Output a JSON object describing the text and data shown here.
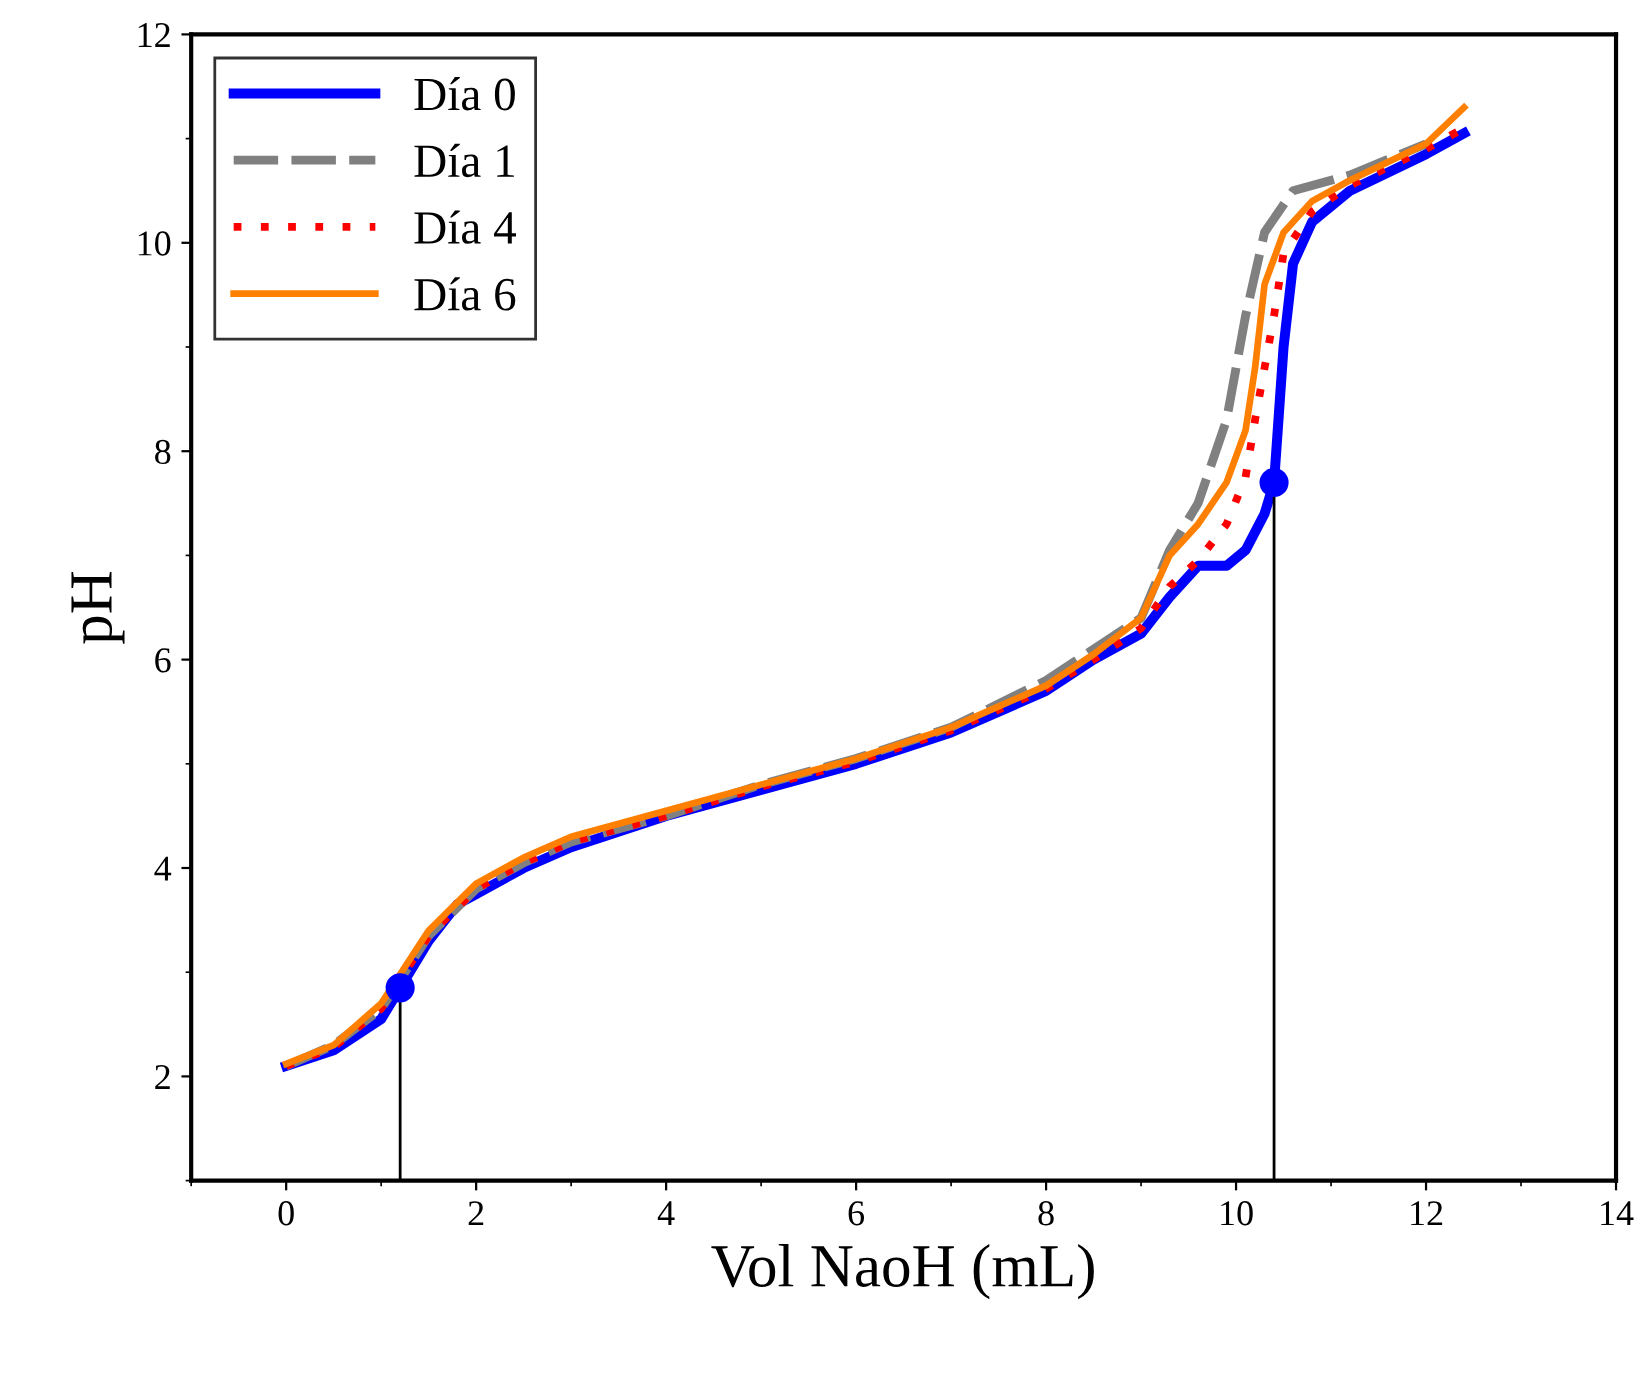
{
  "chart_data": {
    "type": "line",
    "xlabel": "Vol NaoH (mL)",
    "ylabel": "pH",
    "xlim": [
      -1,
      14
    ],
    "xticks": [
      0,
      2,
      4,
      6,
      8,
      10,
      12,
      14
    ],
    "ylim": [
      1,
      12
    ],
    "yticks": [
      2,
      4,
      6,
      8,
      10,
      12
    ],
    "legend": "top left",
    "grid": false,
    "series": [
      {
        "name": "Día 0",
        "color": "#0000ff",
        "line_style": "solid",
        "x": [
          0,
          0.5,
          1.0,
          1.2,
          1.5,
          1.8,
          2.0,
          2.5,
          3,
          4,
          5,
          6,
          7,
          8,
          8.5,
          9.0,
          9.3,
          9.6,
          9.9,
          10.1,
          10.3,
          10.4,
          10.5,
          10.6,
          10.8,
          11.2,
          12,
          12.4
        ],
        "values": [
          2.1,
          2.25,
          2.55,
          2.85,
          3.3,
          3.65,
          3.75,
          4.0,
          4.2,
          4.5,
          4.75,
          5.0,
          5.3,
          5.7,
          6.0,
          6.25,
          6.6,
          6.9,
          6.9,
          7.05,
          7.4,
          7.7,
          9.0,
          9.8,
          10.2,
          10.5,
          10.85,
          11.05
        ]
      },
      {
        "name": "Día 1",
        "color": "#808080",
        "line_style": "dashed",
        "x": [
          0,
          0.5,
          1.0,
          1.5,
          2.0,
          2.5,
          3,
          4,
          5,
          6,
          7,
          8,
          8.5,
          9.0,
          9.3,
          9.6,
          9.9,
          10.1,
          10.3,
          10.6,
          11.2,
          12
        ],
        "values": [
          2.1,
          2.3,
          2.65,
          3.35,
          3.8,
          4.05,
          4.25,
          4.5,
          4.8,
          5.05,
          5.35,
          5.8,
          6.1,
          6.4,
          7.05,
          7.5,
          8.3,
          9.3,
          10.1,
          10.5,
          10.65,
          10.95
        ]
      },
      {
        "name": "Día 4",
        "color": "#ff0000",
        "line_style": "dotted",
        "x": [
          0,
          0.5,
          1.0,
          1.5,
          2.0,
          2.5,
          3,
          4,
          5,
          6,
          7,
          8,
          8.5,
          9.0,
          9.3,
          9.6,
          9.9,
          10.1,
          10.2,
          10.3,
          10.4,
          10.5,
          10.8,
          11.2,
          12,
          12.4
        ],
        "values": [
          2.1,
          2.28,
          2.65,
          3.35,
          3.8,
          4.05,
          4.25,
          4.5,
          4.78,
          5.02,
          5.32,
          5.72,
          6.0,
          6.3,
          6.7,
          6.95,
          7.3,
          7.75,
          8.3,
          8.8,
          9.3,
          9.9,
          10.3,
          10.55,
          10.9,
          11.1
        ]
      },
      {
        "name": "Día 6",
        "color": "#ff8000",
        "line_style": "solid",
        "x": [
          0,
          0.5,
          1.0,
          1.5,
          2.0,
          2.5,
          3,
          4,
          5,
          6,
          7,
          8,
          8.5,
          9.0,
          9.3,
          9.6,
          9.9,
          10.1,
          10.2,
          10.3,
          10.5,
          10.8,
          11.2,
          12,
          12.4
        ],
        "values": [
          2.12,
          2.3,
          2.7,
          3.4,
          3.85,
          4.1,
          4.3,
          4.55,
          4.8,
          5.05,
          5.35,
          5.75,
          6.05,
          6.4,
          7.0,
          7.3,
          7.7,
          8.2,
          8.8,
          9.6,
          10.1,
          10.4,
          10.6,
          10.95,
          11.3
        ]
      },
      {
        "type": "lollipop",
        "color": "#0000ff",
        "x": [
          1.2,
          10.4
        ],
        "values": [
          2.85,
          7.7
        ]
      }
    ]
  }
}
